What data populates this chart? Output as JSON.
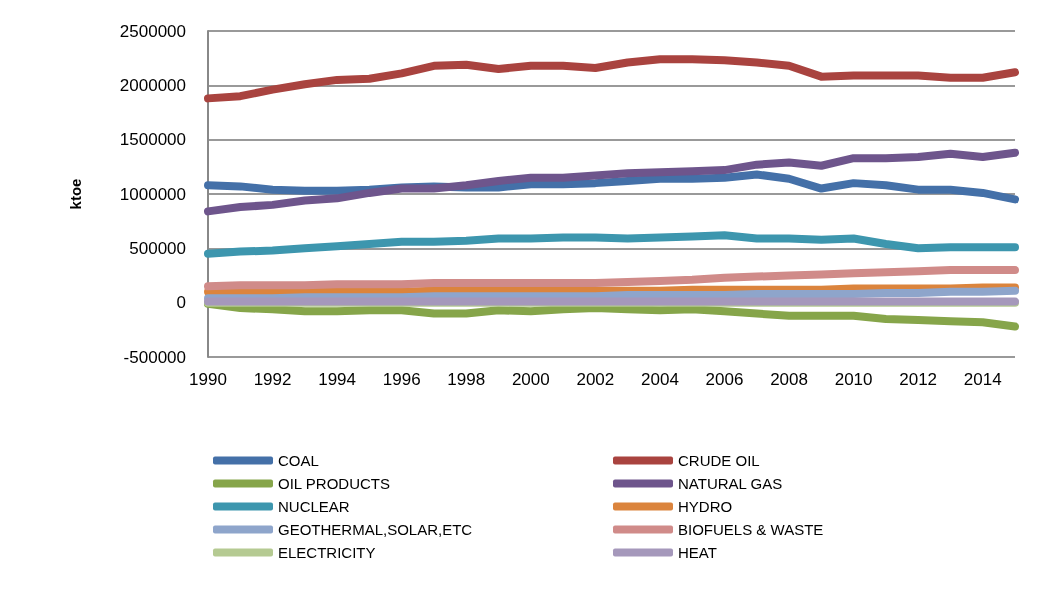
{
  "chart_data": {
    "type": "line",
    "ylabel": "ktoe",
    "x": [
      1990,
      1991,
      1992,
      1993,
      1994,
      1995,
      1996,
      1997,
      1998,
      1999,
      2000,
      2001,
      2002,
      2003,
      2004,
      2005,
      2006,
      2007,
      2008,
      2009,
      2010,
      2011,
      2012,
      2013,
      2014,
      2015
    ],
    "xlim": [
      1990,
      2015
    ],
    "xticks": [
      1990,
      1992,
      1994,
      1996,
      1998,
      2000,
      2002,
      2004,
      2006,
      2008,
      2010,
      2012,
      2014
    ],
    "ylim": [
      -500000,
      2500000
    ],
    "yticks": [
      -500000,
      0,
      500000,
      1000000,
      1500000,
      2000000,
      2500000
    ],
    "grid": "y",
    "legend": "bottom",
    "marker": "none",
    "line_style": "solid",
    "series": [
      {
        "name": "COAL",
        "color": "#4470a8",
        "values": [
          1080000,
          1070000,
          1040000,
          1030000,
          1030000,
          1040000,
          1060000,
          1070000,
          1060000,
          1060000,
          1090000,
          1090000,
          1100000,
          1120000,
          1140000,
          1140000,
          1150000,
          1180000,
          1140000,
          1050000,
          1100000,
          1080000,
          1040000,
          1040000,
          1010000,
          950000
        ]
      },
      {
        "name": "CRUDE OIL",
        "color": "#a9433f",
        "values": [
          1880000,
          1900000,
          1960000,
          2010000,
          2050000,
          2060000,
          2110000,
          2180000,
          2190000,
          2150000,
          2180000,
          2180000,
          2160000,
          2210000,
          2240000,
          2240000,
          2230000,
          2210000,
          2180000,
          2080000,
          2090000,
          2090000,
          2090000,
          2070000,
          2070000,
          2120000
        ]
      },
      {
        "name": "OIL PRODUCTS",
        "color": "#86a54a",
        "values": [
          -10000,
          -50000,
          -60000,
          -80000,
          -80000,
          -70000,
          -70000,
          -100000,
          -100000,
          -70000,
          -80000,
          -60000,
          -50000,
          -60000,
          -70000,
          -60000,
          -80000,
          -100000,
          -120000,
          -120000,
          -120000,
          -150000,
          -160000,
          -170000,
          -180000,
          -220000
        ]
      },
      {
        "name": "NATURAL GAS",
        "color": "#6e558c",
        "values": [
          840000,
          880000,
          900000,
          940000,
          960000,
          1010000,
          1050000,
          1050000,
          1080000,
          1120000,
          1150000,
          1150000,
          1170000,
          1190000,
          1200000,
          1210000,
          1220000,
          1270000,
          1290000,
          1260000,
          1330000,
          1330000,
          1340000,
          1370000,
          1340000,
          1380000
        ]
      },
      {
        "name": "NUCLEAR",
        "color": "#3d96ae",
        "values": [
          450000,
          470000,
          480000,
          500000,
          520000,
          540000,
          560000,
          560000,
          570000,
          590000,
          590000,
          600000,
          600000,
          590000,
          600000,
          610000,
          620000,
          590000,
          590000,
          580000,
          590000,
          540000,
          500000,
          510000,
          510000,
          510000
        ]
      },
      {
        "name": "HYDRO",
        "color": "#db843d",
        "values": [
          100000,
          100000,
          100000,
          100000,
          100000,
          100000,
          100000,
          110000,
          110000,
          110000,
          110000,
          110000,
          110000,
          110000,
          110000,
          120000,
          120000,
          120000,
          120000,
          120000,
          130000,
          130000,
          130000,
          130000,
          140000,
          140000
        ]
      },
      {
        "name": "GEOTHERMAL,SOLAR,ETC",
        "color": "#8ea5cb",
        "values": [
          40000,
          40000,
          40000,
          50000,
          50000,
          50000,
          50000,
          60000,
          60000,
          60000,
          60000,
          60000,
          60000,
          70000,
          70000,
          70000,
          70000,
          80000,
          80000,
          80000,
          80000,
          90000,
          90000,
          100000,
          100000,
          110000
        ]
      },
      {
        "name": "BIOFUELS & WASTE",
        "color": "#d08b89",
        "values": [
          150000,
          160000,
          160000,
          160000,
          170000,
          170000,
          170000,
          180000,
          180000,
          180000,
          180000,
          180000,
          180000,
          190000,
          200000,
          210000,
          230000,
          240000,
          250000,
          260000,
          270000,
          280000,
          290000,
          300000,
          300000,
          300000
        ]
      },
      {
        "name": "ELECTRICITY",
        "color": "#b5ca92",
        "values": [
          0,
          0,
          0,
          0,
          0,
          0,
          0,
          0,
          0,
          0,
          0,
          0,
          0,
          0,
          0,
          0,
          0,
          0,
          0,
          0,
          0,
          0,
          0,
          0,
          0,
          0
        ]
      },
      {
        "name": "HEAT",
        "color": "#a598bb",
        "values": [
          10000,
          10000,
          10000,
          10000,
          10000,
          10000,
          10000,
          10000,
          10000,
          10000,
          10000,
          10000,
          10000,
          10000,
          10000,
          10000,
          10000,
          10000,
          10000,
          10000,
          10000,
          10000,
          10000,
          10000,
          10000,
          10000
        ]
      }
    ]
  }
}
